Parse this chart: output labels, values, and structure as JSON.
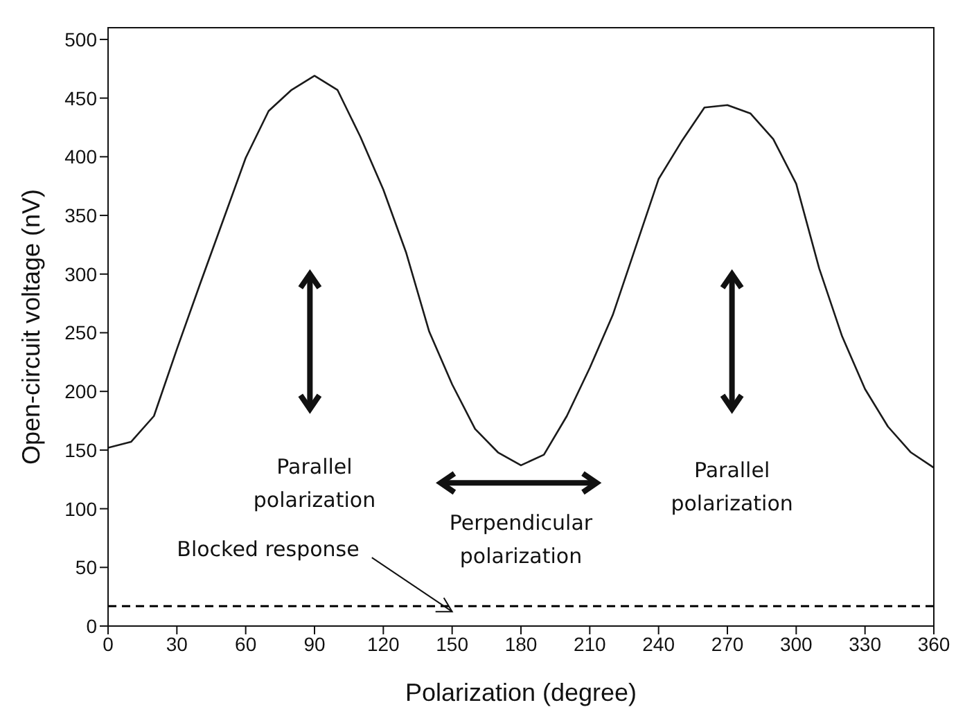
{
  "chart_data": {
    "type": "line",
    "xlabel": "Polarization (degree)",
    "ylabel": "Open-circuit voltage (nV)",
    "x": [
      0,
      10,
      20,
      30,
      40,
      50,
      60,
      70,
      80,
      90,
      100,
      110,
      120,
      130,
      140,
      150,
      160,
      170,
      180,
      190,
      200,
      210,
      220,
      230,
      240,
      250,
      260,
      270,
      280,
      290,
      300,
      310,
      320,
      330,
      340,
      350,
      360
    ],
    "series": [
      {
        "color": "#1a1a1a",
        "values": [
          152,
          157,
          179,
          236,
          291,
          345,
          399,
          439,
          457,
          469,
          457,
          417,
          372,
          318,
          251,
          206,
          168,
          148,
          137,
          146,
          179,
          220,
          265,
          323,
          381,
          413,
          442,
          444,
          437,
          415,
          377,
          305,
          247,
          202,
          170,
          148,
          135
        ]
      }
    ],
    "xlim": [
      0,
      360
    ],
    "xticks": [
      0,
      30,
      60,
      90,
      120,
      150,
      180,
      210,
      240,
      270,
      300,
      330,
      360
    ],
    "ylim": [
      0,
      510
    ],
    "yticks": [
      0,
      50,
      100,
      150,
      200,
      250,
      300,
      350,
      400,
      450,
      500
    ],
    "ref_lines": [
      {
        "axis": "y",
        "value": 17,
        "color": "#000000",
        "line_style": "dashed"
      }
    ],
    "annotations": [
      {
        "text": "Blocked response",
        "x": 150,
        "y": 17
      },
      "Parallel\npolarization",
      "Perpendicular\npolarization",
      "Parallel\npolarization"
    ],
    "grid": false,
    "legend": false,
    "marker": "none",
    "line_style": "solid"
  }
}
